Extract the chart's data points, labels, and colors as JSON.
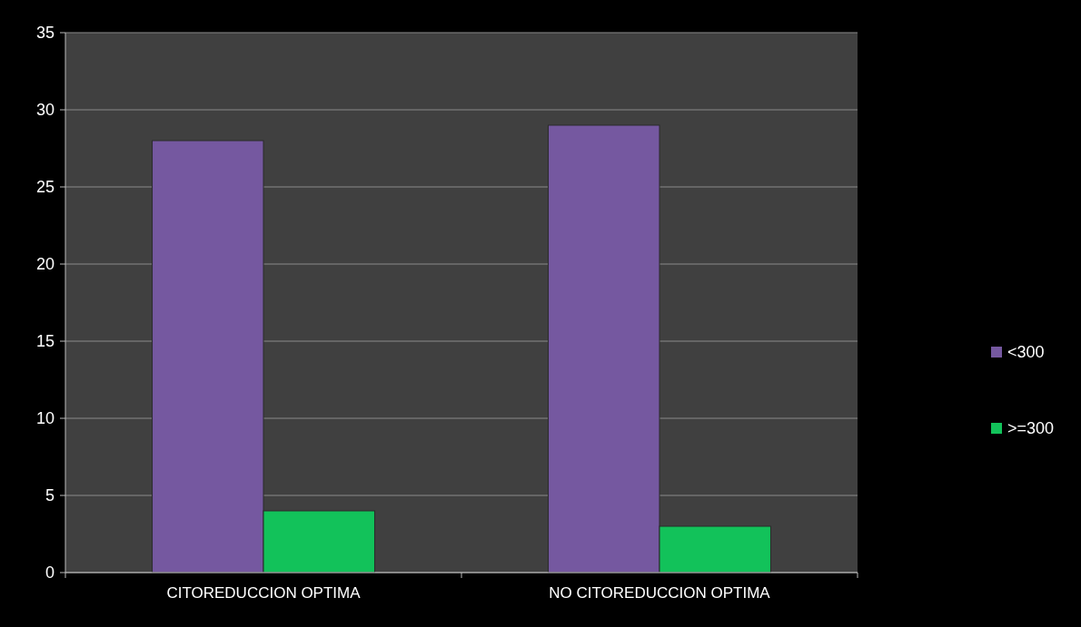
{
  "chart_data": {
    "type": "bar",
    "categories": [
      "CITOREDUCCION OPTIMA",
      "NO CITOREDUCCION OPTIMA"
    ],
    "series": [
      {
        "name": "<300",
        "color": "#7558a0",
        "values": [
          28,
          29
        ]
      },
      {
        "name": ">=300",
        "color": "#12c25a",
        "values": [
          4,
          3
        ]
      }
    ],
    "ylim": [
      0,
      35
    ],
    "yticks": [
      0,
      5,
      10,
      15,
      20,
      25,
      30,
      35
    ],
    "grid": "y",
    "legend": "right"
  }
}
